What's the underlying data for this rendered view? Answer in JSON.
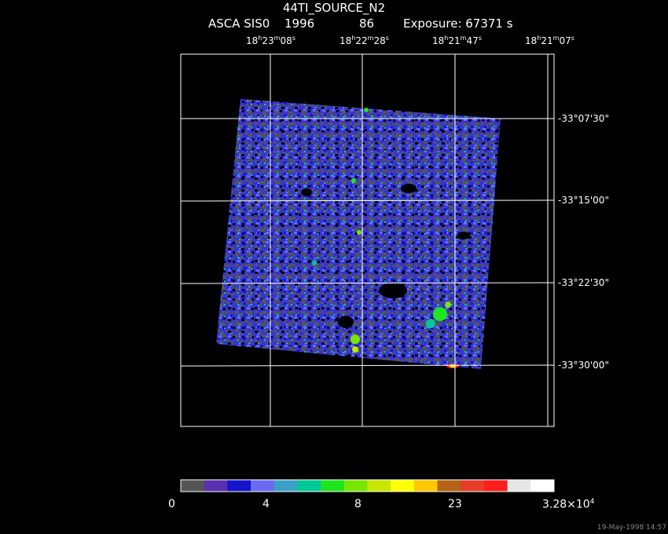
{
  "header": {
    "source_name": "44TI_SOURCE_N2",
    "instrument": "ASCA SIS0",
    "year": "1996",
    "day": "86",
    "exposure": "Exposure: 67371 s"
  },
  "ra_ticks": [
    {
      "h": "18",
      "m": "23",
      "s": "08"
    },
    {
      "h": "18",
      "m": "22",
      "s": "28"
    },
    {
      "h": "18",
      "m": "21",
      "s": "47"
    },
    {
      "h": "18",
      "m": "21",
      "s": "07"
    }
  ],
  "dec_ticks": [
    "-33°07'30\"",
    "-33°15'00\"",
    "-33°22'30\"",
    "-33°30'00\""
  ],
  "colorbar": {
    "colors": [
      "#555555",
      "#5a2fb0",
      "#1414c8",
      "#6a6af0",
      "#3aa0c8",
      "#00c896",
      "#1ee61e",
      "#78e600",
      "#c8e600",
      "#ffff00",
      "#ffc800",
      "#b46414",
      "#e63c28",
      "#ff1e1e",
      "#e6e6e6",
      "#ffffff"
    ],
    "labels": [
      "0",
      "4",
      "8",
      "23",
      "3.28×10"
    ],
    "label_exponent": "4"
  },
  "timestamp": "19-May-1998 14:57"
}
